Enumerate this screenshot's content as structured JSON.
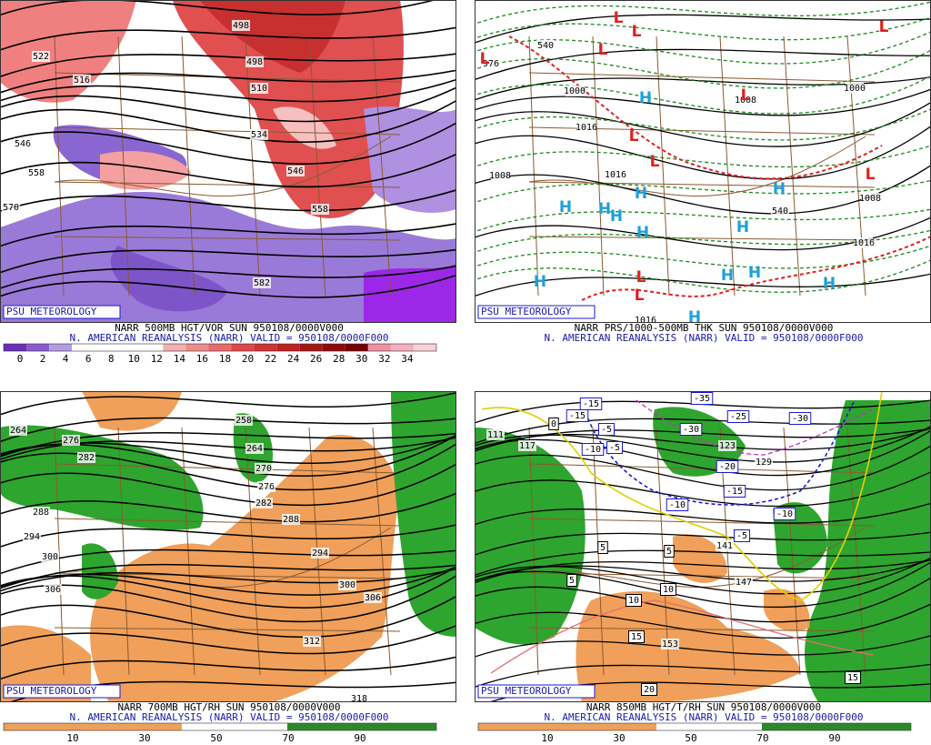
{
  "panels": [
    {
      "badge": "PSU METEOROLOGY",
      "title": "NARR 500MB HGT/VOR SUN 950108/0000V000",
      "subtitle": "N. AMERICAN REANALYSIS (NARR) VALID = 950108/0000F000",
      "colorbar": [
        0,
        2,
        4,
        6,
        8,
        10,
        12,
        14,
        16,
        18,
        20,
        22,
        24,
        26,
        28,
        30,
        32,
        34
      ],
      "contour_labels": [
        "498",
        "498",
        "510",
        "522",
        "534",
        "546",
        "558",
        "570",
        "546",
        "558",
        "582",
        "516"
      ]
    },
    {
      "badge": "PSU METEOROLOGY",
      "title": "NARR PRS/1000-500MB THK SUN 950108/0000V000",
      "subtitle": "N. AMERICAN REANALYSIS (NARR) VALID = 950108/0000F000",
      "contour_labels": [
        "976",
        "1000",
        "1008",
        "1016",
        "1016",
        "1008",
        "1016",
        "1016",
        "540",
        "540",
        "1008",
        "1000"
      ],
      "highs": [
        "H",
        "H",
        "H",
        "H",
        "H",
        "H",
        "H",
        "H",
        "H",
        "H",
        "H",
        "H",
        "H"
      ],
      "lows": [
        "L",
        "L",
        "L",
        "L",
        "L",
        "L",
        "L",
        "L",
        "L",
        "L",
        "L"
      ]
    },
    {
      "badge": "PSU METEOROLOGY",
      "title": "NARR 700MB HGT/RH SUN 950108/0000V000",
      "subtitle": "N. AMERICAN REANALYSIS (NARR) VALID = 950108/0000F000",
      "colorbar": [
        10,
        30,
        50,
        70,
        90
      ],
      "contour_labels": [
        "264",
        "276",
        "282",
        "288",
        "294",
        "300",
        "306",
        "258",
        "264",
        "270",
        "276",
        "282",
        "288",
        "294",
        "300",
        "306",
        "312",
        "318"
      ]
    },
    {
      "badge": "PSU METEOROLOGY",
      "title": "NARR 850MB HGT/T/RH SUN 950108/0000V000",
      "subtitle": "N. AMERICAN REANALYSIS (NARR) VALID = 950108/0000F000",
      "colorbar": [
        10,
        30,
        50,
        70,
        90
      ],
      "contour_labels": [
        "111",
        "117",
        "123",
        "129",
        "141",
        "147",
        "153"
      ],
      "temp_labels": [
        "-15",
        "-15",
        "-5",
        "-10",
        "-5",
        "-35",
        "-25",
        "-30",
        "-30",
        "-20",
        "-15",
        "-10",
        "-10",
        "-5",
        "0",
        "5",
        "5",
        "5",
        "10",
        "10",
        "15",
        "15",
        "20"
      ]
    }
  ]
}
